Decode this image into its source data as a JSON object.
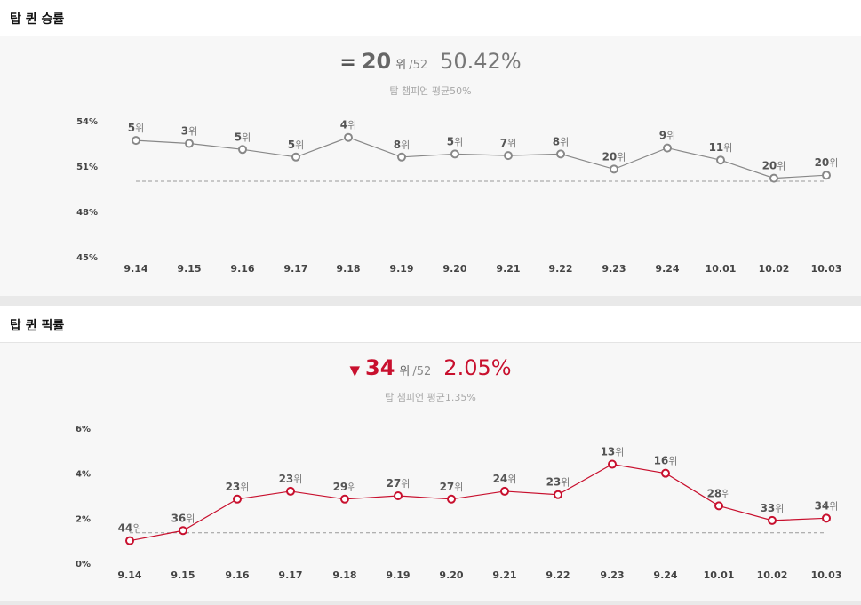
{
  "panels": [
    {
      "title": "탑 퀸 승률",
      "summary": {
        "change_symbol": "=",
        "rank": "20",
        "rank_unit": "위",
        "rank_total": "/52",
        "rate": "50.42%",
        "average_text": "탑 챔피언 평균50%"
      },
      "accent_color": "#888888",
      "rank_color": "#666666",
      "rate_color": "#777777"
    },
    {
      "title": "탑 퀸 픽률",
      "summary": {
        "change_symbol": "▼",
        "rank": "34",
        "rank_unit": "위",
        "rank_total": "/52",
        "rate": "2.05%",
        "average_text": "탑 챔피언 평균1.35%"
      },
      "accent_color": "#c8102e",
      "rank_color": "#c8102e",
      "rate_color": "#c8102e"
    }
  ],
  "chart_data": [
    {
      "type": "line",
      "categories": [
        "9.14",
        "9.15",
        "9.16",
        "9.17",
        "9.18",
        "9.19",
        "9.20",
        "9.21",
        "9.22",
        "9.23",
        "9.24",
        "10.01",
        "10.02",
        "10.03"
      ],
      "series": [
        {
          "values": [
            52.7,
            52.5,
            52.1,
            51.6,
            52.9,
            51.6,
            51.8,
            51.7,
            51.8,
            50.8,
            52.2,
            51.4,
            50.2,
            50.4
          ],
          "labels": [
            "5위",
            "3위",
            "5위",
            "5위",
            "4위",
            "8위",
            "5위",
            "7위",
            "8위",
            "20위",
            "9위",
            "11위",
            "20위",
            "20위"
          ],
          "color": "#888888"
        }
      ],
      "reference_line": 50,
      "y_ticks": [
        54,
        51,
        48,
        45
      ],
      "y_tick_labels": [
        "54%",
        "51%",
        "48%",
        "45%"
      ],
      "ylim": [
        45,
        54
      ],
      "grid": false
    },
    {
      "type": "line",
      "categories": [
        "9.14",
        "9.15",
        "9.16",
        "9.17",
        "9.18",
        "9.19",
        "9.20",
        "9.21",
        "9.22",
        "9.23",
        "9.24",
        "10.01",
        "10.02",
        "10.03"
      ],
      "series": [
        {
          "values": [
            1.0,
            1.45,
            2.85,
            3.2,
            2.85,
            3.0,
            2.85,
            3.2,
            3.05,
            4.4,
            4.0,
            2.55,
            1.9,
            2.0
          ],
          "labels": [
            "44위",
            "36위",
            "23위",
            "23위",
            "29위",
            "27위",
            "27위",
            "24위",
            "23위",
            "13위",
            "16위",
            "28위",
            "33위",
            "34위"
          ],
          "color": "#c8102e"
        }
      ],
      "reference_line": 1.35,
      "y_ticks": [
        6,
        4,
        2,
        0
      ],
      "y_tick_labels": [
        "6%",
        "4%",
        "2%",
        "0%"
      ],
      "ylim": [
        0,
        6
      ],
      "grid": false
    }
  ]
}
